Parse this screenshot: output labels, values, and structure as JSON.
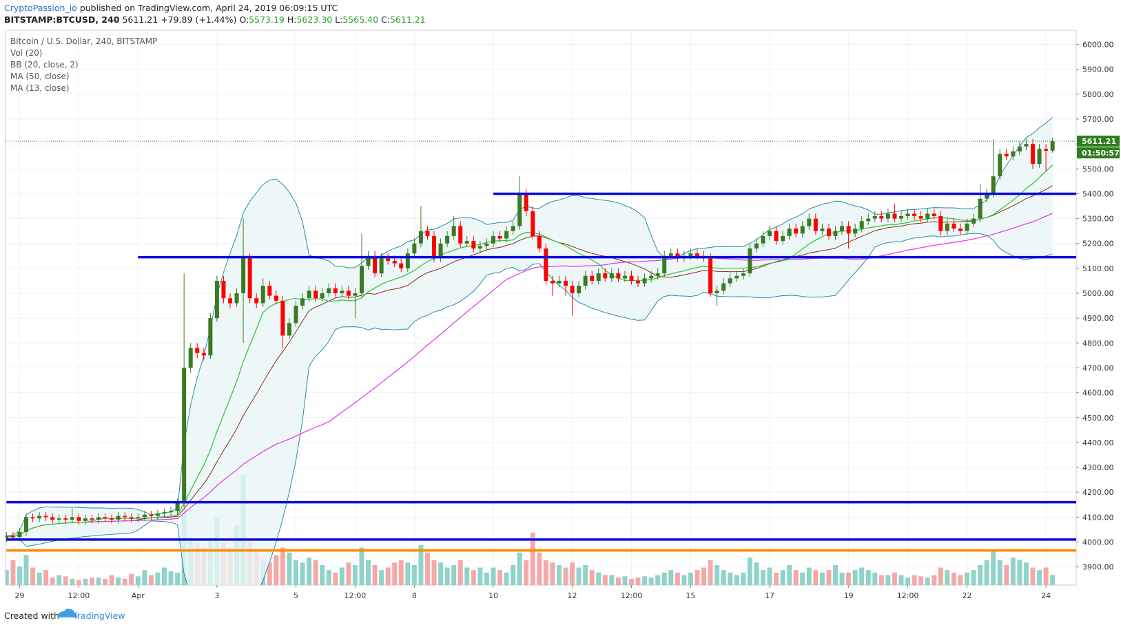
{
  "header": {
    "author": "CryptoPassion_io",
    "published": "published on TradingView.com, April 24, 2019 06:09:15 UTC",
    "symbol": "BITSTAMP:BTCUSD, 240",
    "last": "5611.21",
    "change": "+79.89 (+1.44%)",
    "o_label": "O:",
    "o": "5573.19",
    "h_label": "H:",
    "h": "5623.30",
    "l_label": "L:",
    "l": "5565.40",
    "c_label": "C:",
    "c": "5611.21"
  },
  "chart_data": {
    "type": "candlestick",
    "title": "Bitcoin / U.S. Dollar, 240, BITSTAMP",
    "indicators": [
      "Vol (20)",
      "BB (20, close, 2)",
      "MA (50, close)",
      "MA (13, close)"
    ],
    "open": [
      4015,
      4025,
      4020,
      4040,
      4100,
      4095,
      4105,
      4100,
      4090,
      4095,
      4090,
      4100,
      4085,
      4095,
      4090,
      4100,
      4095,
      4090,
      4105,
      4100,
      4095,
      4100,
      4110,
      4105,
      4115,
      4120,
      4125,
      4160,
      4700,
      4780,
      4760,
      4750,
      4900,
      5050,
      4980,
      4960,
      5000,
      5150,
      4980,
      4960,
      5030,
      4990,
      4970,
      4830,
      4880,
      4950,
      4980,
      5010,
      4980,
      5000,
      5020,
      5000,
      5010,
      4990,
      5000,
      5110,
      5150,
      5080,
      5140,
      5130,
      5120,
      5100,
      5160,
      5200,
      5250,
      5230,
      5140,
      5200,
      5230,
      5270,
      5200,
      5210,
      5180,
      5190,
      5200,
      5230,
      5220,
      5250,
      5270,
      5400,
      5330,
      5230,
      5180,
      5050,
      5040,
      5050,
      5030,
      5000,
      5030,
      5070,
      5050,
      5080,
      5060,
      5080,
      5060,
      5070,
      5050,
      5040,
      5060,
      5070,
      5080,
      5150,
      5160,
      5140,
      5150,
      5160,
      5150,
      5140,
      5000,
      5010,
      5040,
      5060,
      5070,
      5080,
      5180,
      5200,
      5230,
      5250,
      5210,
      5230,
      5260,
      5240,
      5270,
      5300,
      5250,
      5260,
      5230,
      5250,
      5270,
      5240,
      5260,
      5290,
      5300,
      5310,
      5300,
      5320,
      5300,
      5310,
      5320,
      5310,
      5300,
      5320,
      5310,
      5250,
      5280,
      5260,
      5250,
      5280,
      5300,
      5380,
      5400,
      5470,
      5560,
      5550,
      5570,
      5590,
      5600,
      5520,
      5580,
      5573.19
    ],
    "high": [
      4040,
      4040,
      4055,
      4115,
      4115,
      4120,
      4120,
      4115,
      4110,
      4110,
      4135,
      4115,
      4110,
      4110,
      4115,
      4115,
      4110,
      4120,
      4120,
      4115,
      4115,
      4125,
      4125,
      4130,
      4135,
      4140,
      4175,
      5080,
      4800,
      4800,
      4780,
      4920,
      5070,
      5070,
      5000,
      5020,
      5300,
      5160,
      5000,
      5060,
      5050,
      5010,
      4990,
      4900,
      4970,
      5000,
      5030,
      5030,
      5020,
      5040,
      5040,
      5030,
      5030,
      5020,
      5240,
      5170,
      5170,
      5160,
      5160,
      5150,
      5140,
      5180,
      5220,
      5350,
      5270,
      5250,
      5220,
      5250,
      5310,
      5290,
      5230,
      5230,
      5210,
      5220,
      5250,
      5250,
      5270,
      5290,
      5470,
      5420,
      5350,
      5250,
      5200,
      5070,
      5070,
      5070,
      5050,
      5050,
      5090,
      5090,
      5100,
      5100,
      5100,
      5100,
      5090,
      5090,
      5070,
      5080,
      5090,
      5100,
      5170,
      5180,
      5180,
      5170,
      5180,
      5180,
      5170,
      5160,
      5030,
      5060,
      5080,
      5090,
      5100,
      5200,
      5220,
      5250,
      5270,
      5270,
      5250,
      5280,
      5280,
      5290,
      5320,
      5320,
      5280,
      5280,
      5270,
      5290,
      5290,
      5280,
      5310,
      5320,
      5330,
      5330,
      5340,
      5360,
      5330,
      5340,
      5340,
      5330,
      5340,
      5340,
      5330,
      5300,
      5300,
      5280,
      5300,
      5320,
      5440,
      5420,
      5620,
      5580,
      5580,
      5590,
      5610,
      5620,
      5620,
      5600,
      5600,
      5623.3
    ],
    "low": [
      4000,
      4005,
      4005,
      4025,
      4080,
      4080,
      4085,
      4075,
      4075,
      4075,
      4075,
      4070,
      4070,
      4075,
      4075,
      4080,
      4075,
      4075,
      4085,
      4080,
      4080,
      4085,
      4090,
      4090,
      4100,
      4105,
      4110,
      4140,
      4680,
      4740,
      4730,
      4735,
      4885,
      4960,
      4940,
      4945,
      4800,
      4960,
      4940,
      4945,
      4975,
      4955,
      4780,
      4815,
      4865,
      4935,
      4965,
      4965,
      4965,
      4985,
      4985,
      4985,
      4975,
      4900,
      4985,
      5095,
      5065,
      5065,
      5115,
      5105,
      5085,
      5085,
      5145,
      5185,
      5215,
      5125,
      5125,
      5185,
      5215,
      5185,
      5185,
      5165,
      5165,
      5175,
      5185,
      5205,
      5205,
      5235,
      5255,
      5310,
      5215,
      5165,
      5035,
      4990,
      5025,
      4990,
      4910,
      4985,
      5015,
      5035,
      5035,
      5045,
      5045,
      5045,
      5045,
      5035,
      5025,
      5025,
      5045,
      5055,
      5065,
      5135,
      5125,
      5125,
      5135,
      5135,
      5125,
      4985,
      4950,
      4995,
      5025,
      5045,
      5055,
      5065,
      5165,
      5185,
      5215,
      5195,
      5195,
      5215,
      5225,
      5225,
      5255,
      5235,
      5235,
      5215,
      5215,
      5235,
      5180,
      5225,
      5245,
      5275,
      5285,
      5285,
      5285,
      5285,
      5285,
      5295,
      5295,
      5285,
      5285,
      5295,
      5230,
      5235,
      5245,
      5235,
      5235,
      5265,
      5285,
      5365,
      5385,
      5455,
      5535,
      5535,
      5555,
      5575,
      5500,
      5505,
      5490,
      5565.4
    ],
    "close": [
      4025,
      4020,
      4040,
      4100,
      4095,
      4105,
      4100,
      4090,
      4095,
      4090,
      4100,
      4085,
      4095,
      4090,
      4100,
      4095,
      4090,
      4105,
      4100,
      4095,
      4100,
      4110,
      4105,
      4115,
      4120,
      4125,
      4160,
      4700,
      4780,
      4760,
      4750,
      4900,
      5050,
      4980,
      4960,
      5000,
      5150,
      4980,
      4960,
      5030,
      4990,
      4970,
      4830,
      4880,
      4950,
      4980,
      5010,
      4980,
      5000,
      5020,
      5000,
      5010,
      4990,
      5000,
      5110,
      5150,
      5080,
      5140,
      5130,
      5120,
      5100,
      5160,
      5200,
      5250,
      5230,
      5140,
      5200,
      5230,
      5270,
      5200,
      5210,
      5180,
      5190,
      5200,
      5230,
      5220,
      5250,
      5270,
      5400,
      5330,
      5230,
      5180,
      5050,
      5040,
      5050,
      5030,
      5000,
      5030,
      5070,
      5050,
      5080,
      5060,
      5080,
      5060,
      5070,
      5050,
      5040,
      5060,
      5070,
      5080,
      5150,
      5160,
      5140,
      5150,
      5160,
      5150,
      5140,
      5000,
      5010,
      5040,
      5060,
      5070,
      5080,
      5180,
      5200,
      5230,
      5250,
      5210,
      5230,
      5260,
      5240,
      5270,
      5300,
      5250,
      5260,
      5230,
      5250,
      5270,
      5240,
      5260,
      5290,
      5300,
      5310,
      5300,
      5320,
      5300,
      5310,
      5320,
      5310,
      5300,
      5320,
      5310,
      5250,
      5280,
      5260,
      5250,
      5280,
      5300,
      5380,
      5400,
      5470,
      5560,
      5550,
      5570,
      5590,
      5600,
      5520,
      5580,
      5573,
      5611.21
    ],
    "volume": [
      600,
      1000,
      750,
      1200,
      700,
      500,
      600,
      300,
      400,
      350,
      250,
      200,
      250,
      300,
      300,
      250,
      400,
      300,
      250,
      450,
      350,
      600,
      400,
      500,
      700,
      550,
      500,
      3300,
      1900,
      1700,
      1500,
      1900,
      2700,
      1700,
      1500,
      2400,
      4400,
      1800,
      1300,
      1000,
      900,
      1200,
      1500,
      1300,
      1000,
      900,
      1100,
      1000,
      800,
      600,
      500,
      700,
      900,
      800,
      1500,
      1000,
      800,
      600,
      700,
      900,
      1000,
      900,
      800,
      1600,
      1300,
      1000,
      900,
      700,
      800,
      1000,
      700,
      600,
      700,
      500,
      700,
      600,
      500,
      800,
      1300,
      1000,
      2100,
      1300,
      1000,
      900,
      800,
      700,
      900,
      700,
      800,
      600,
      500,
      400,
      400,
      300,
      350,
      250,
      300,
      350,
      300,
      400,
      500,
      600,
      500,
      400,
      500,
      600,
      700,
      1000,
      800,
      600,
      500,
      400,
      500,
      1100,
      900,
      600,
      700,
      500,
      600,
      800,
      600,
      500,
      700,
      600,
      500,
      600,
      800,
      500,
      500,
      600,
      700,
      600,
      500,
      400,
      400,
      500,
      400,
      300,
      400,
      350,
      300,
      400,
      700,
      600,
      500,
      400,
      500,
      600,
      800,
      1000,
      1400,
      1000,
      800,
      1100,
      1000,
      900,
      700,
      600,
      700,
      400
    ],
    "xlim": [
      -0.14,
      162.6
    ],
    "xticks": [
      {
        "value": 2,
        "label": "29"
      },
      {
        "value": 11,
        "label": "12:00"
      },
      {
        "value": 20,
        "label": "Apr"
      },
      {
        "value": 32,
        "label": "3"
      },
      {
        "value": 44,
        "label": "5"
      },
      {
        "value": 53,
        "label": "12:00"
      },
      {
        "value": 62,
        "label": "8"
      },
      {
        "value": 74,
        "label": "10"
      },
      {
        "value": 86,
        "label": "12"
      },
      {
        "value": 95,
        "label": "12:00"
      },
      {
        "value": 104,
        "label": "15"
      },
      {
        "value": 116,
        "label": "17"
      },
      {
        "value": 128,
        "label": "19"
      },
      {
        "value": 137,
        "label": "12:00"
      },
      {
        "value": 146,
        "label": "22"
      },
      {
        "value": 158,
        "label": "24"
      }
    ],
    "ylim": [
      3827,
      6057
    ],
    "yticks": [
      {
        "value": 3900,
        "label": "3900.00"
      },
      {
        "value": 4000,
        "label": "4000.00"
      },
      {
        "value": 4100,
        "label": "4100.00"
      },
      {
        "value": 4200,
        "label": "4200.00"
      },
      {
        "value": 4300,
        "label": "4300.00"
      },
      {
        "value": 4400,
        "label": "4400.00"
      },
      {
        "value": 4500,
        "label": "4500.00"
      },
      {
        "value": 4600,
        "label": "4600.00"
      },
      {
        "value": 4700,
        "label": "4700.00"
      },
      {
        "value": 4800,
        "label": "4800.00"
      },
      {
        "value": 4900,
        "label": "4900.00"
      },
      {
        "value": 5000,
        "label": "5000.00"
      },
      {
        "value": 5100,
        "label": "5100.00"
      },
      {
        "value": 5200,
        "label": "5200.00"
      },
      {
        "value": 5300,
        "label": "5300.00"
      },
      {
        "value": 5400,
        "label": "5400.00"
      },
      {
        "value": 5500,
        "label": "5500.00"
      },
      {
        "value": 5600,
        "label": "5600.00"
      },
      {
        "value": 5700,
        "label": "5700.00"
      },
      {
        "value": 5800,
        "label": "5800.00"
      },
      {
        "value": 5900,
        "label": "5900.00"
      },
      {
        "value": 6000,
        "label": "6000.00"
      }
    ],
    "grid": true,
    "up_color": "#3b7a22",
    "down_color": "#ff0000",
    "volume_up_color": "#8fd3c9",
    "volume_down_color": "#f5a8a8",
    "bb_color": "#2b8aa6",
    "bb_fill": "#e9f5f5",
    "basis_color": "#8b2a1a",
    "ma_slow_color": "#e83ee8",
    "ma_fast_color": "#3cc43c",
    "hlines": [
      {
        "value": 5400,
        "start": 74,
        "color": "#0b0bdc"
      },
      {
        "value": 5145,
        "start": 20,
        "color": "#0b0bdc"
      },
      {
        "value": 4160,
        "start": 0,
        "color": "#0b0bdc"
      },
      {
        "value": 4010,
        "start": 0,
        "color": "#0b0bdc"
      },
      {
        "value": 3966,
        "start": 0,
        "color": "#ff8c00"
      }
    ],
    "last_price_color": "#2f7d1c",
    "countdown": "01:50:57"
  },
  "footer": {
    "created": "Created with",
    "brand": "TradingView"
  }
}
